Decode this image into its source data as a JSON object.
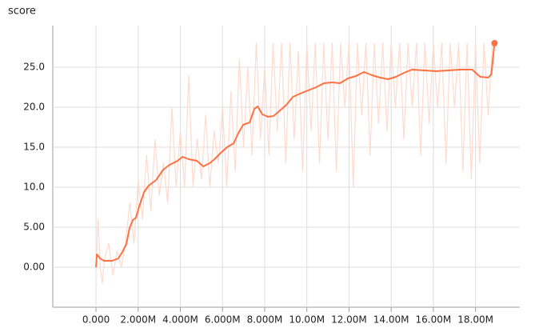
{
  "chart_data": {
    "type": "line",
    "title": "score",
    "grid": true,
    "xlim": [
      -2050000,
      20100000
    ],
    "ylim": [
      -5,
      30.2
    ],
    "xticks": [
      {
        "value": 0,
        "label": "0.000"
      },
      {
        "value": 2000000,
        "label": "2.000M"
      },
      {
        "value": 4000000,
        "label": "4.000M"
      },
      {
        "value": 6000000,
        "label": "6.000M"
      },
      {
        "value": 8000000,
        "label": "8.000M"
      },
      {
        "value": 10000000,
        "label": "10.00M"
      },
      {
        "value": 12000000,
        "label": "12.00M"
      },
      {
        "value": 14000000,
        "label": "14.00M"
      },
      {
        "value": 16000000,
        "label": "16.00M"
      },
      {
        "value": 18000000,
        "label": "18.00M"
      }
    ],
    "yticks": [
      {
        "value": 0,
        "label": "0.00"
      },
      {
        "value": 5,
        "label": "5.00"
      },
      {
        "value": 10,
        "label": "10.0"
      },
      {
        "value": 15,
        "label": "15.0"
      },
      {
        "value": 20,
        "label": "20.0"
      },
      {
        "value": 25,
        "label": "25.0"
      }
    ],
    "series": [
      {
        "color": "#fddbcf",
        "x": [
          0,
          100000,
          200000,
          300000,
          400000,
          600000,
          800000,
          1000000,
          1200000,
          1400000,
          1600000,
          1800000,
          2000000,
          2200000,
          2400000,
          2600000,
          2800000,
          3000000,
          3200000,
          3400000,
          3600000,
          3800000,
          4000000,
          4200000,
          4400000,
          4600000,
          4800000,
          5000000,
          5200000,
          5400000,
          5600000,
          5800000,
          6000000,
          6200000,
          6400000,
          6600000,
          6800000,
          7000000,
          7200000,
          7400000,
          7600000,
          7800000,
          8000000,
          8200000,
          8400000,
          8600000,
          8800000,
          9000000,
          9200000,
          9400000,
          9600000,
          9800000,
          10000000,
          10200000,
          10400000,
          10600000,
          10800000,
          11000000,
          11200000,
          11400000,
          11600000,
          11800000,
          12000000,
          12200000,
          12400000,
          12600000,
          12800000,
          13000000,
          13200000,
          13400000,
          13600000,
          13800000,
          14000000,
          14200000,
          14400000,
          14600000,
          14800000,
          15000000,
          15200000,
          15400000,
          15600000,
          15800000,
          16000000,
          16200000,
          16400000,
          16600000,
          16800000,
          17000000,
          17200000,
          17400000,
          17600000,
          17800000,
          18000000,
          18200000,
          18400000,
          18600000,
          18800000
        ],
        "values": [
          0,
          6,
          0,
          -2,
          1,
          3,
          -1,
          2,
          0,
          3,
          8,
          3,
          11,
          6,
          14,
          7,
          16,
          9,
          13,
          8,
          20,
          10,
          17,
          10,
          24,
          10,
          16,
          11,
          19,
          10,
          17,
          13,
          20,
          10,
          22,
          12,
          26,
          15,
          25,
          14,
          28,
          16,
          25,
          14,
          28,
          17,
          28,
          13,
          28,
          16,
          27,
          12,
          28,
          17,
          28,
          13,
          28,
          16,
          28,
          12,
          28,
          20,
          28,
          10,
          28,
          19,
          28,
          14,
          28,
          18,
          28,
          17,
          28,
          20,
          28,
          16,
          28,
          20,
          28,
          14,
          28,
          18,
          28,
          20,
          28,
          13,
          28,
          20,
          28,
          12,
          28,
          11,
          28,
          13,
          28,
          19,
          28
        ]
      },
      {
        "color": "#ff7043",
        "x": [
          0,
          40000,
          190000,
          380000,
          760000,
          1060000,
          1250000,
          1440000,
          1590000,
          1750000,
          1900000,
          2050000,
          2280000,
          2500000,
          2850000,
          3190000,
          3490000,
          3870000,
          4100000,
          4400000,
          4780000,
          5090000,
          5390000,
          5620000,
          5920000,
          6220000,
          6530000,
          6760000,
          6980000,
          7290000,
          7510000,
          7670000,
          7890000,
          8160000,
          8420000,
          8730000,
          9030000,
          9340000,
          9680000,
          10060000,
          10440000,
          10820000,
          11200000,
          11570000,
          11950000,
          12330000,
          12710000,
          13090000,
          13470000,
          13850000,
          14230000,
          14610000,
          14990000,
          15560000,
          16130000,
          16700000,
          17270000,
          17840000,
          18220000,
          18600000,
          18750000,
          18900000
        ],
        "values": [
          0,
          1.6,
          1.1,
          0.8,
          0.8,
          1.1,
          1.9,
          2.9,
          4.9,
          5.9,
          6.2,
          7.6,
          9.4,
          10.2,
          10.9,
          12.2,
          12.8,
          13.3,
          13.8,
          13.5,
          13.3,
          12.6,
          13.0,
          13.5,
          14.3,
          15.0,
          15.5,
          16.8,
          17.8,
          18.1,
          19.8,
          20.1,
          19.1,
          18.8,
          18.9,
          19.6,
          20.3,
          21.3,
          21.7,
          22.1,
          22.5,
          23.0,
          23.1,
          23.0,
          23.6,
          23.9,
          24.4,
          24.0,
          23.7,
          23.5,
          23.8,
          24.3,
          24.7,
          24.6,
          24.5,
          24.6,
          24.7,
          24.7,
          23.8,
          23.7,
          24.1,
          28.0
        ]
      }
    ]
  }
}
